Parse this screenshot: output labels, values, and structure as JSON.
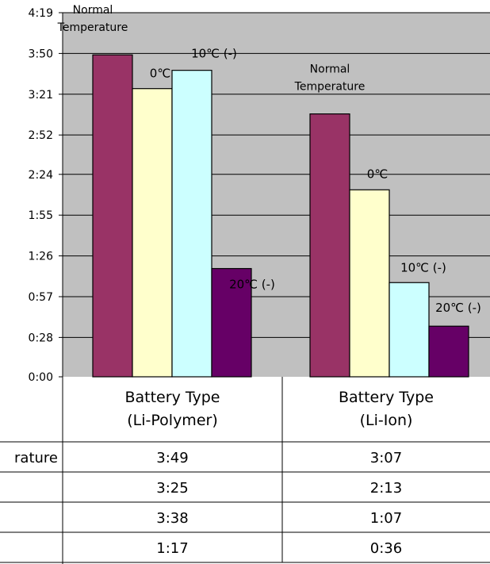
{
  "chart_data": {
    "type": "bar",
    "categories": [
      [
        "Battery Type",
        "(Li-Polymer)"
      ],
      [
        "Battery Type",
        "(Li-Ion)"
      ]
    ],
    "series": [
      {
        "name": "Normal Temperature",
        "labels": [
          "Normal",
          "Temperature"
        ],
        "values": [
          "3:49",
          "3:07"
        ],
        "color": "#993366"
      },
      {
        "name": "0℃",
        "labels": [
          "0℃"
        ],
        "values": [
          "3:25",
          "2:13"
        ],
        "color": "#FFFFCC"
      },
      {
        "name": "10℃ (-)",
        "labels": [
          "10℃ (-)"
        ],
        "values": [
          "3:38",
          "1:07"
        ],
        "color": "#CCFFFF"
      },
      {
        "name": "20℃ (-)",
        "labels": [
          "20℃ (-)"
        ],
        "values": [
          "1:17",
          "0:36"
        ],
        "color": "#660066"
      }
    ],
    "y_ticks": [
      "0:00",
      "0:28",
      "0:57",
      "1:26",
      "1:55",
      "2:24",
      "2:52",
      "3:21",
      "3:50",
      "4:19"
    ],
    "ylim": [
      "0:00",
      "4:19"
    ],
    "grid": true,
    "plot_background": "#C0C0C0",
    "table_row_labels": [
      "rature",
      "",
      "",
      ""
    ]
  }
}
